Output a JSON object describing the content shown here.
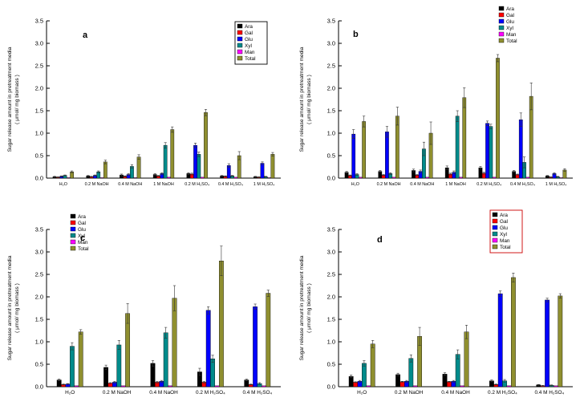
{
  "figure": {
    "ylabel_line1": "Sugar release amount in pretreatment media",
    "ylabel_line2": "( μmol/ mg biomass )"
  },
  "colors": {
    "Ara": "#000000",
    "Gal": "#ff0000",
    "Glu": "#0000ff",
    "Xyl": "#008b8b",
    "Man": "#ff00ff",
    "Total": "#8f8f2f",
    "error_bar": "#333333",
    "axis": "#000000",
    "legend_border_a": "#000000",
    "legend_border_d": "#cc0000"
  },
  "chart_data": [
    {
      "panel": "a",
      "type": "bar",
      "ylabel": "Sugar release amount in pretreatment media ( μmol/ mg biomass )",
      "categories": [
        "H₂O",
        "0.2 M NaOH",
        "0.4 M NaOH",
        "1 M NaOH",
        "0.2 M H₂SO₄",
        "0.4 M H₂SO₄",
        "1 M H₂SO₄"
      ],
      "series": [
        {
          "name": "Ara",
          "values": [
            0.03,
            0.05,
            0.07,
            0.08,
            0.1,
            0.05,
            0.03
          ],
          "errors": [
            0.01,
            0.01,
            0.02,
            0.02,
            0.02,
            0.01,
            0.01
          ]
        },
        {
          "name": "Gal",
          "values": [
            0.02,
            0.03,
            0.04,
            0.05,
            0.09,
            0.04,
            0.02
          ],
          "errors": [
            0.01,
            0.01,
            0.01,
            0.01,
            0.02,
            0.01,
            0.01
          ]
        },
        {
          "name": "Glu",
          "values": [
            0.04,
            0.06,
            0.08,
            0.1,
            0.73,
            0.28,
            0.33
          ],
          "errors": [
            0.01,
            0.01,
            0.02,
            0.02,
            0.05,
            0.04,
            0.03
          ]
        },
        {
          "name": "Xyl",
          "values": [
            0.06,
            0.14,
            0.26,
            0.73,
            0.53,
            0.05,
            0.03
          ],
          "errors": [
            0.01,
            0.02,
            0.04,
            0.06,
            0.05,
            0.01,
            0.01
          ]
        },
        {
          "name": "Man",
          "values": [
            0.01,
            0.01,
            0.01,
            0.02,
            0.02,
            0.02,
            0.01
          ],
          "errors": [
            0,
            0,
            0,
            0,
            0,
            0,
            0
          ]
        },
        {
          "name": "Total",
          "values": [
            0.14,
            0.36,
            0.47,
            1.08,
            1.46,
            0.5,
            0.53
          ],
          "errors": [
            0.02,
            0.04,
            0.05,
            0.06,
            0.07,
            0.09,
            0.04
          ]
        }
      ],
      "ylim": [
        0.0,
        3.5
      ],
      "yticks": [
        0.0,
        0.5,
        1.0,
        1.5,
        2.0,
        2.5,
        3.0,
        3.5
      ],
      "grid": false,
      "legend_pos": {
        "x": 296,
        "y": 30,
        "border": true,
        "border_color": "#000000"
      },
      "letter_pos": [
        103,
        47
      ]
    },
    {
      "panel": "b",
      "type": "bar",
      "ylabel": "Sugar release amount in pretreatment media ( μmol/ mg biomass )",
      "categories": [
        "H₂O",
        "0.2 M NaOH",
        "0.4 M NaOH",
        "1 M NaOH",
        "0.2 M H₂SO₄",
        "0.4 M H₂SO₄",
        "1 M H₂SO₄"
      ],
      "series": [
        {
          "name": "Ara",
          "values": [
            0.13,
            0.15,
            0.17,
            0.23,
            0.23,
            0.15,
            0.05
          ],
          "errors": [
            0.02,
            0.02,
            0.03,
            0.04,
            0.03,
            0.02,
            0.01
          ]
        },
        {
          "name": "Gal",
          "values": [
            0.06,
            0.07,
            0.07,
            0.09,
            0.11,
            0.08,
            0.02
          ],
          "errors": [
            0.01,
            0.01,
            0.01,
            0.02,
            0.02,
            0.01,
            0.01
          ]
        },
        {
          "name": "Glu",
          "values": [
            0.98,
            1.03,
            0.15,
            0.13,
            1.22,
            1.3,
            0.1
          ],
          "errors": [
            0.1,
            0.12,
            0.03,
            0.03,
            0.05,
            0.15,
            0.02
          ]
        },
        {
          "name": "Xyl",
          "values": [
            0.08,
            0.1,
            0.65,
            1.38,
            1.15,
            0.35,
            0.03
          ],
          "errors": [
            0.02,
            0.02,
            0.15,
            0.12,
            0.05,
            0.12,
            0.01
          ]
        },
        {
          "name": "Man",
          "values": [
            0.02,
            0.02,
            0.02,
            0.02,
            0.02,
            0.02,
            0.01
          ],
          "errors": [
            0,
            0,
            0,
            0,
            0,
            0,
            0
          ]
        },
        {
          "name": "Total",
          "values": [
            1.26,
            1.38,
            1.0,
            1.79,
            2.67,
            1.82,
            0.18
          ],
          "errors": [
            0.12,
            0.2,
            0.25,
            0.22,
            0.08,
            0.3,
            0.03
          ]
        }
      ],
      "ylim": [
        0.0,
        3.5
      ],
      "yticks": [
        0.0,
        0.5,
        1.0,
        1.5,
        2.0,
        2.5,
        3.0,
        3.5
      ],
      "grid": false,
      "legend_pos": {
        "x": 258,
        "y": 8,
        "border": false
      },
      "letter_pos": [
        76,
        46
      ]
    },
    {
      "panel": "c",
      "type": "bar",
      "ylabel": "Sugar release amount in pretreatment media ( μmol/ mg biomass )",
      "categories": [
        "H₂O",
        "0.2 M NaOH",
        "0.4 M NaOH",
        "0.2 M H₂SO₄",
        "0.4 M H₂SO₄"
      ],
      "series": [
        {
          "name": "Ara",
          "values": [
            0.15,
            0.43,
            0.52,
            0.33,
            0.15
          ],
          "errors": [
            0.02,
            0.05,
            0.06,
            0.08,
            0.02
          ]
        },
        {
          "name": "Gal",
          "values": [
            0.05,
            0.08,
            0.1,
            0.1,
            0.05
          ],
          "errors": [
            0.01,
            0.01,
            0.02,
            0.02,
            0.01
          ]
        },
        {
          "name": "Glu",
          "values": [
            0.06,
            0.1,
            0.12,
            1.7,
            1.78
          ],
          "errors": [
            0.01,
            0.02,
            0.02,
            0.08,
            0.06
          ]
        },
        {
          "name": "Xyl",
          "values": [
            0.9,
            0.93,
            1.2,
            0.62,
            0.07
          ],
          "errors": [
            0.08,
            0.1,
            0.12,
            0.08,
            0.02
          ]
        },
        {
          "name": "Man",
          "values": [
            0.02,
            0.02,
            0.02,
            0.02,
            0.02
          ],
          "errors": [
            0,
            0,
            0,
            0,
            0
          ]
        },
        {
          "name": "Total",
          "values": [
            1.22,
            1.63,
            1.97,
            2.8,
            2.08
          ],
          "errors": [
            0.05,
            0.22,
            0.28,
            0.33,
            0.07
          ]
        }
      ],
      "ylim": [
        0.0,
        3.5
      ],
      "yticks": [
        0.0,
        0.5,
        1.0,
        1.5,
        2.0,
        2.5,
        3.0,
        3.5
      ],
      "grid": false,
      "legend_pos": {
        "x": 88,
        "y": 7,
        "border": false
      },
      "letter_pos": [
        100,
        40
      ]
    },
    {
      "panel": "d",
      "type": "bar",
      "ylabel": "Sugar release amount in pretreatment media ( μmol/ mg biomass )",
      "categories": [
        "H₂O",
        "0.2 M NaOH",
        "0.4 M NaOH",
        "0.2 M H₂SO₄",
        "0.4 M H₂SO₄"
      ],
      "series": [
        {
          "name": "Ara",
          "values": [
            0.23,
            0.27,
            0.28,
            0.13,
            0.04
          ],
          "errors": [
            0.03,
            0.03,
            0.03,
            0.02,
            0.01
          ]
        },
        {
          "name": "Gal",
          "values": [
            0.1,
            0.11,
            0.11,
            0.05,
            0.02
          ],
          "errors": [
            0.01,
            0.01,
            0.01,
            0.01,
            0.01
          ]
        },
        {
          "name": "Glu",
          "values": [
            0.12,
            0.12,
            0.12,
            2.07,
            1.93
          ],
          "errors": [
            0.02,
            0.02,
            0.02,
            0.06,
            0.04
          ]
        },
        {
          "name": "Xyl",
          "values": [
            0.52,
            0.63,
            0.72,
            0.13,
            0.03
          ],
          "errors": [
            0.06,
            0.08,
            0.1,
            0.03,
            0.01
          ]
        },
        {
          "name": "Man",
          "values": [
            0.02,
            0.02,
            0.02,
            0.02,
            0.02
          ],
          "errors": [
            0,
            0,
            0,
            0,
            0
          ]
        },
        {
          "name": "Total",
          "values": [
            0.95,
            1.12,
            1.22,
            2.43,
            2.02
          ],
          "errors": [
            0.08,
            0.2,
            0.15,
            0.1,
            0.05
          ]
        }
      ],
      "ylim": [
        0.0,
        3.5
      ],
      "yticks": [
        0.0,
        0.5,
        1.0,
        1.5,
        2.0,
        2.5,
        3.0,
        3.5
      ],
      "grid": false,
      "legend_pos": {
        "x": 250,
        "y": 5,
        "border": true,
        "border_color": "#cc0000"
      },
      "letter_pos": [
        106,
        42
      ]
    }
  ]
}
